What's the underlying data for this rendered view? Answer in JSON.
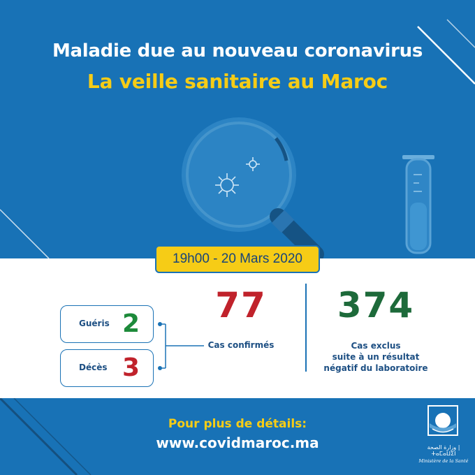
{
  "header": {
    "title_line1": "Maladie due au nouveau coronavirus",
    "title_line2": "La veille sanitaire au Maroc"
  },
  "date": "19h00 - 20 Mars 2020",
  "stats": {
    "gueris": {
      "label": "Guéris",
      "value": "2"
    },
    "deces": {
      "label": "Décès",
      "value": "3"
    },
    "confirmes": {
      "value": "77",
      "label": "Cas confirmés"
    },
    "exclus": {
      "value": "374",
      "label_lines": [
        "Cas exclus",
        "suite à un résultat",
        "négatif du laboratoire"
      ]
    }
  },
  "footer": {
    "more_label": "Pour plus de détails:",
    "url": "www.covidmaroc.ma"
  },
  "logo": {
    "arabic": "وزارة الصحة | ⵜⴰⵎⴰⵡⵉⵏ",
    "french": "Ministère de la Santé"
  },
  "colors": {
    "blue": "#1872b6",
    "yellow": "#f6cc16",
    "green": "#1d8a3a",
    "red": "#c0222b"
  }
}
